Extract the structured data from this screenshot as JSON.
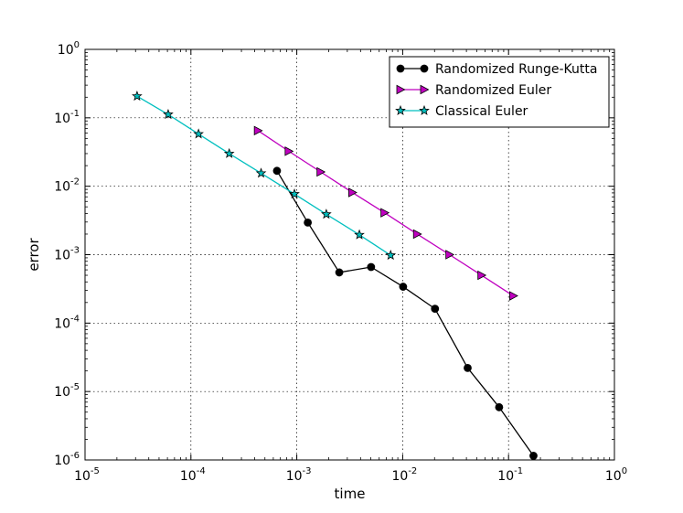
{
  "chart_data": {
    "type": "line",
    "xlabel": "time",
    "ylabel": "error",
    "xscale": "log",
    "yscale": "log",
    "xlim": [
      1e-05,
      1
    ],
    "ylim": [
      1e-06,
      1
    ],
    "grid": true,
    "legend_position": "top-right",
    "x_ticks": [
      {
        "base": "10",
        "exp": "-5",
        "value": 1e-05
      },
      {
        "base": "10",
        "exp": "-4",
        "value": 0.0001
      },
      {
        "base": "10",
        "exp": "-3",
        "value": 0.001
      },
      {
        "base": "10",
        "exp": "-2",
        "value": 0.01
      },
      {
        "base": "10",
        "exp": "-1",
        "value": 0.1
      },
      {
        "base": "10",
        "exp": "0",
        "value": 1
      }
    ],
    "y_ticks": [
      {
        "base": "10",
        "exp": "-6",
        "value": 1e-06
      },
      {
        "base": "10",
        "exp": "-5",
        "value": 1e-05
      },
      {
        "base": "10",
        "exp": "-4",
        "value": 0.0001
      },
      {
        "base": "10",
        "exp": "-3",
        "value": 0.001
      },
      {
        "base": "10",
        "exp": "-2",
        "value": 0.01
      },
      {
        "base": "10",
        "exp": "-1",
        "value": 0.1
      },
      {
        "base": "10",
        "exp": "0",
        "value": 1
      }
    ],
    "series": [
      {
        "name": "Randomized Runge-Kutta",
        "color": "#000000",
        "marker": "circle",
        "marker_fill": "#000000",
        "x": [
          0.00065,
          0.00127,
          0.00252,
          0.00503,
          0.0101,
          0.0202,
          0.0411,
          0.0815,
          0.172
        ],
        "y": [
          0.0168,
          0.00295,
          0.00055,
          0.00066,
          0.00034,
          0.000162,
          2.21e-05,
          5.9e-06,
          1.15e-06
        ]
      },
      {
        "name": "Randomized Euler",
        "color": "#bf00bf",
        "marker": "triangle-right",
        "marker_fill": "#bf00bf",
        "x": [
          0.00043,
          0.00084,
          0.00168,
          0.00335,
          0.00675,
          0.0137,
          0.0277,
          0.0556,
          0.111
        ],
        "y": [
          0.065,
          0.0325,
          0.0162,
          0.0081,
          0.0041,
          0.002,
          0.001,
          0.0005,
          0.00025
        ]
      },
      {
        "name": "Classical Euler",
        "color": "#00bfbf",
        "marker": "star",
        "marker_fill": "#00bfbf",
        "x": [
          3.1e-05,
          6.1e-05,
          0.000118,
          0.00023,
          0.00046,
          0.00095,
          0.0019,
          0.0039,
          0.0077
        ],
        "y": [
          0.207,
          0.112,
          0.058,
          0.03,
          0.0155,
          0.0077,
          0.0039,
          0.00195,
          0.00098
        ]
      }
    ]
  }
}
